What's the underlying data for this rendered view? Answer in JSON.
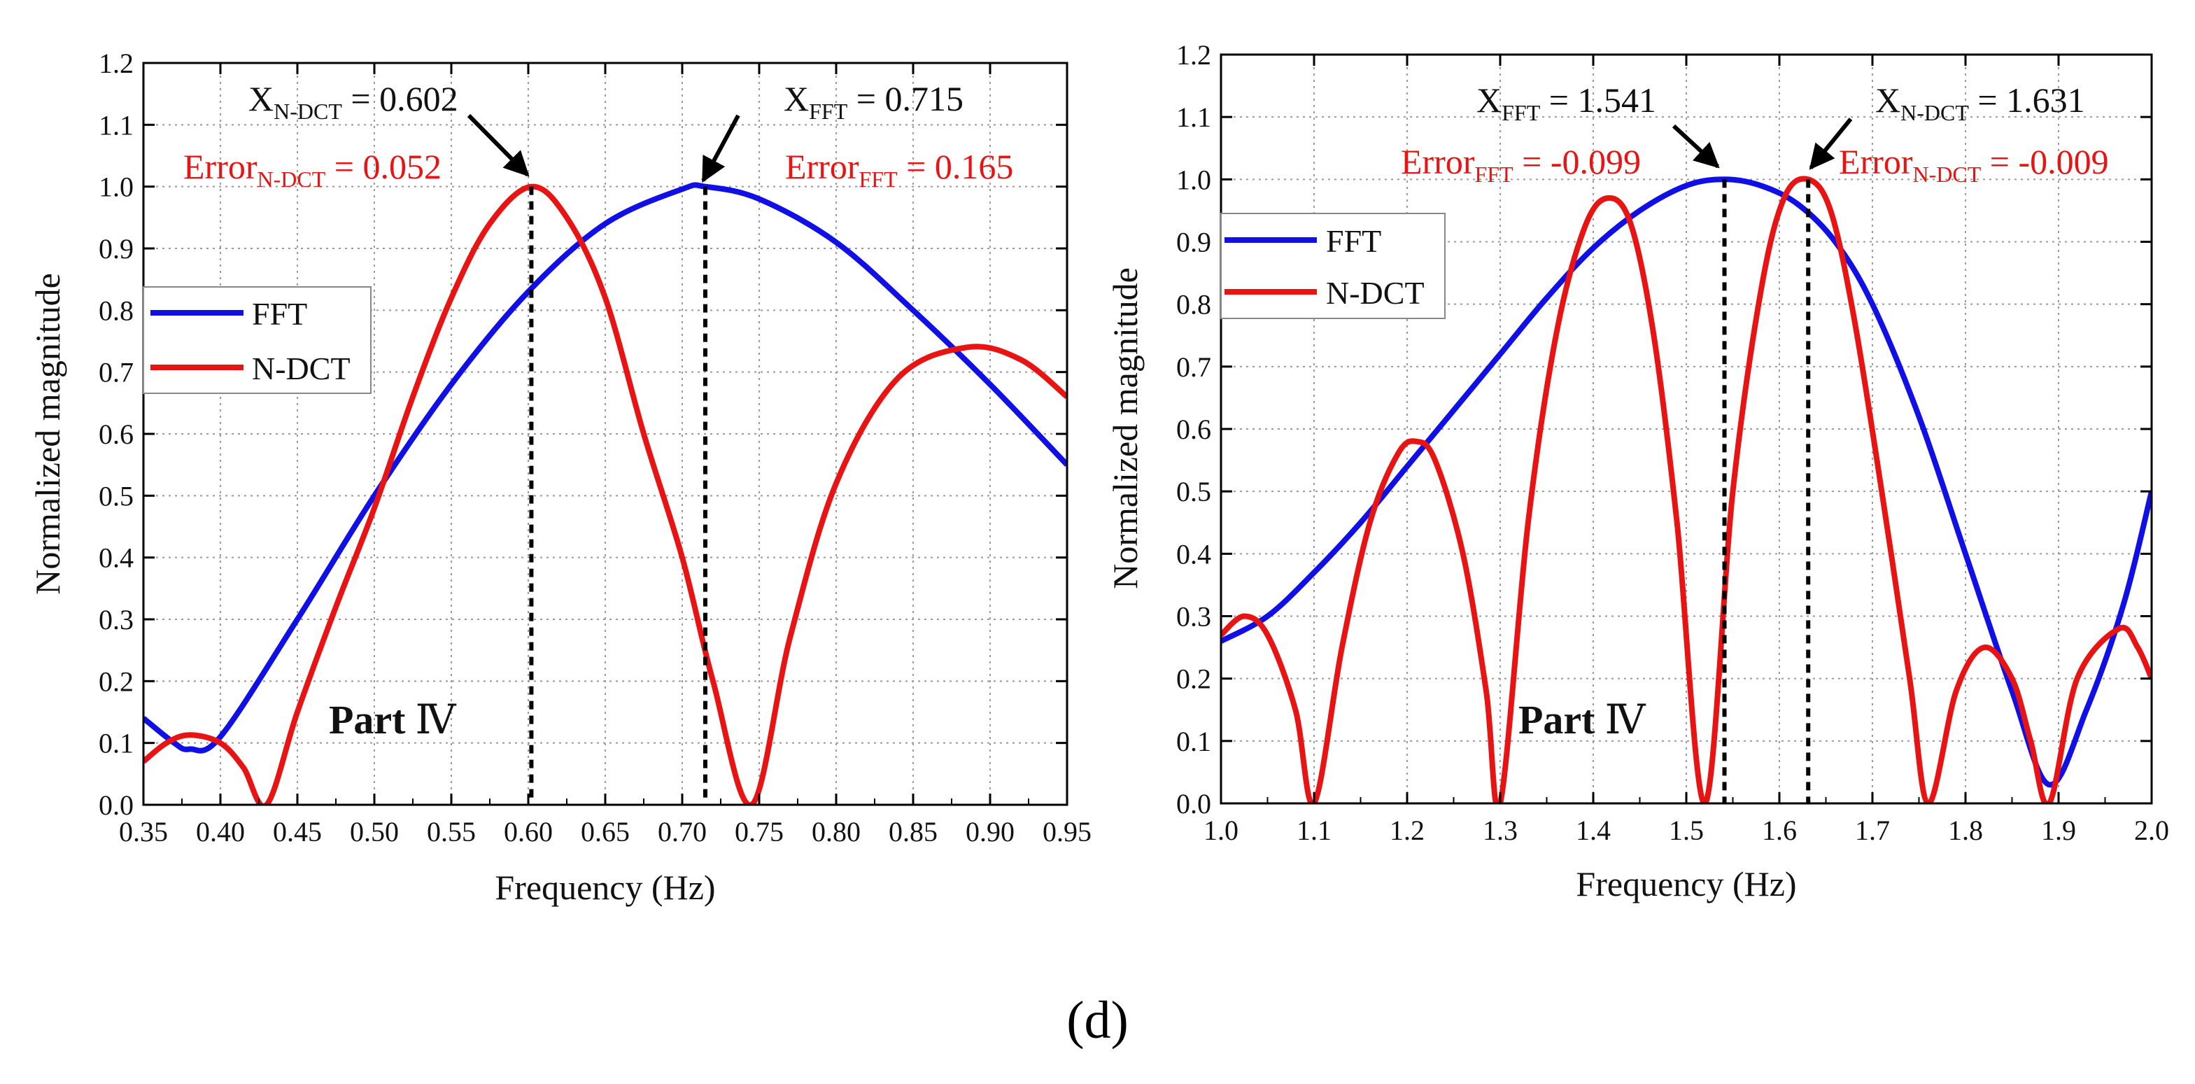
{
  "figure": {
    "caption": "(d)"
  },
  "colors": {
    "fft": "#1010e6",
    "ndct": "#e81414",
    "annotation_red": "#e81414",
    "text": "#111111"
  },
  "chart_data": [
    {
      "type": "line",
      "panel": "left",
      "xlabel": "Frequency (Hz)",
      "ylabel": "Normalized magnitude",
      "xlim": [
        0.35,
        0.95
      ],
      "ylim": [
        0.0,
        1.2
      ],
      "xticks": [
        "0.35",
        "0.40",
        "0.45",
        "0.50",
        "0.55",
        "0.60",
        "0.65",
        "0.70",
        "0.75",
        "0.80",
        "0.85",
        "0.90",
        "0.95"
      ],
      "yticks": [
        "0.0",
        "0.1",
        "0.2",
        "0.3",
        "0.4",
        "0.5",
        "0.6",
        "0.7",
        "0.8",
        "0.9",
        "1.0",
        "1.1",
        "1.2"
      ],
      "grid": true,
      "legend": {
        "position": "left-middle",
        "entries": [
          "FFT",
          "N-DCT"
        ]
      },
      "series": [
        {
          "name": "FFT",
          "color": "#1010e6",
          "points": [
            [
              0.35,
              0.14
            ],
            [
              0.37,
              0.1
            ],
            [
              0.38,
              0.09
            ],
            [
              0.4,
              0.11
            ],
            [
              0.45,
              0.3
            ],
            [
              0.5,
              0.5
            ],
            [
              0.55,
              0.68
            ],
            [
              0.6,
              0.83
            ],
            [
              0.65,
              0.94
            ],
            [
              0.7,
              0.996
            ],
            [
              0.715,
              1.0
            ],
            [
              0.75,
              0.98
            ],
            [
              0.8,
              0.91
            ],
            [
              0.85,
              0.8
            ],
            [
              0.9,
              0.68
            ],
            [
              0.95,
              0.55
            ]
          ]
        },
        {
          "name": "N-DCT",
          "color": "#e81414",
          "points": [
            [
              0.35,
              0.07
            ],
            [
              0.365,
              0.1
            ],
            [
              0.38,
              0.113
            ],
            [
              0.4,
              0.1
            ],
            [
              0.415,
              0.06
            ],
            [
              0.43,
              0.0
            ],
            [
              0.45,
              0.15
            ],
            [
              0.475,
              0.32
            ],
            [
              0.5,
              0.48
            ],
            [
              0.525,
              0.66
            ],
            [
              0.55,
              0.82
            ],
            [
              0.575,
              0.94
            ],
            [
              0.602,
              1.0
            ],
            [
              0.625,
              0.95
            ],
            [
              0.65,
              0.82
            ],
            [
              0.675,
              0.6
            ],
            [
              0.7,
              0.4
            ],
            [
              0.72,
              0.2
            ],
            [
              0.745,
              0.0
            ],
            [
              0.77,
              0.27
            ],
            [
              0.8,
              0.52
            ],
            [
              0.84,
              0.69
            ],
            [
              0.885,
              0.74
            ],
            [
              0.92,
              0.72
            ],
            [
              0.95,
              0.66
            ]
          ]
        }
      ],
      "markers": [
        {
          "x": 0.602,
          "y": 1.0
        },
        {
          "x": 0.715,
          "y": 1.0
        }
      ],
      "annotations": {
        "a1_main": "X",
        "a1_sub": "N-DCT",
        "a1_rest": " = 0.602",
        "a2_main": "X",
        "a2_sub": "FFT",
        "a2_rest": " = 0.715",
        "a3_main": "Error",
        "a3_sub": "N-DCT",
        "a3_rest": " = 0.052",
        "a4_main": "Error",
        "a4_sub": "FFT",
        "a4_rest": " = 0.165",
        "part_bold": "Part",
        "part_numeral": "Ⅳ"
      }
    },
    {
      "type": "line",
      "panel": "right",
      "xlabel": "Frequency (Hz)",
      "ylabel": "Normalized magnitude",
      "xlim": [
        1.0,
        2.0
      ],
      "ylim": [
        0.0,
        1.2
      ],
      "xticks": [
        "1.0",
        "1.1",
        "1.2",
        "1.3",
        "1.4",
        "1.5",
        "1.6",
        "1.7",
        "1.8",
        "1.9",
        "2.0"
      ],
      "yticks": [
        "0.0",
        "0.1",
        "0.2",
        "0.3",
        "0.4",
        "0.5",
        "0.6",
        "0.7",
        "0.8",
        "0.9",
        "1.0",
        "1.1",
        "1.2"
      ],
      "grid": true,
      "legend": {
        "position": "top-left",
        "entries": [
          "FFT",
          "N-DCT"
        ]
      },
      "series": [
        {
          "name": "FFT",
          "color": "#1010e6",
          "points": [
            [
              1.0,
              0.26
            ],
            [
              1.05,
              0.3
            ],
            [
              1.1,
              0.37
            ],
            [
              1.15,
              0.45
            ],
            [
              1.2,
              0.54
            ],
            [
              1.25,
              0.63
            ],
            [
              1.3,
              0.72
            ],
            [
              1.35,
              0.81
            ],
            [
              1.4,
              0.89
            ],
            [
              1.45,
              0.95
            ],
            [
              1.5,
              0.99
            ],
            [
              1.541,
              1.0
            ],
            [
              1.58,
              0.99
            ],
            [
              1.62,
              0.96
            ],
            [
              1.66,
              0.9
            ],
            [
              1.7,
              0.8
            ],
            [
              1.75,
              0.62
            ],
            [
              1.8,
              0.4
            ],
            [
              1.85,
              0.18
            ],
            [
              1.89,
              0.03
            ],
            [
              1.93,
              0.15
            ],
            [
              1.97,
              0.32
            ],
            [
              2.0,
              0.5
            ]
          ]
        },
        {
          "name": "N-DCT",
          "color": "#e81414",
          "points": [
            [
              1.0,
              0.27
            ],
            [
              1.025,
              0.3
            ],
            [
              1.05,
              0.27
            ],
            [
              1.08,
              0.15
            ],
            [
              1.1,
              0.0
            ],
            [
              1.13,
              0.25
            ],
            [
              1.16,
              0.45
            ],
            [
              1.19,
              0.56
            ],
            [
              1.21,
              0.58
            ],
            [
              1.23,
              0.55
            ],
            [
              1.26,
              0.4
            ],
            [
              1.285,
              0.18
            ],
            [
              1.3,
              0.0
            ],
            [
              1.33,
              0.45
            ],
            [
              1.36,
              0.75
            ],
            [
              1.39,
              0.92
            ],
            [
              1.415,
              0.97
            ],
            [
              1.44,
              0.93
            ],
            [
              1.465,
              0.75
            ],
            [
              1.49,
              0.45
            ],
            [
              1.52,
              0.0
            ],
            [
              1.55,
              0.5
            ],
            [
              1.58,
              0.82
            ],
            [
              1.605,
              0.97
            ],
            [
              1.631,
              1.0
            ],
            [
              1.655,
              0.95
            ],
            [
              1.68,
              0.78
            ],
            [
              1.71,
              0.5
            ],
            [
              1.74,
              0.2
            ],
            [
              1.76,
              0.0
            ],
            [
              1.79,
              0.18
            ],
            [
              1.82,
              0.25
            ],
            [
              1.85,
              0.2
            ],
            [
              1.87,
              0.1
            ],
            [
              1.89,
              0.0
            ],
            [
              1.92,
              0.2
            ],
            [
              1.965,
              0.28
            ],
            [
              1.985,
              0.25
            ],
            [
              2.0,
              0.2
            ]
          ]
        }
      ],
      "markers": [
        {
          "x": 1.541,
          "y": 1.0
        },
        {
          "x": 1.631,
          "y": 1.0
        }
      ],
      "annotations": {
        "a1_main": "X",
        "a1_sub": "FFT",
        "a1_rest": " = 1.541",
        "a2_main": "X",
        "a2_sub": "N-DCT",
        "a2_rest": " = 1.631",
        "a3_main": "Error",
        "a3_sub": "FFT",
        "a3_rest": " = -0.099",
        "a4_main": "Error",
        "a4_sub": "N-DCT",
        "a4_rest": " = -0.009",
        "part_bold": "Part",
        "part_numeral": "Ⅳ"
      }
    }
  ]
}
